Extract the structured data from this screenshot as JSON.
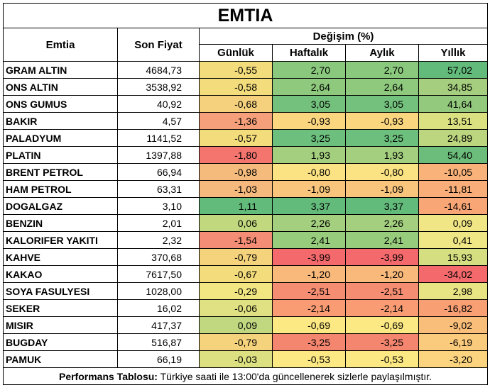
{
  "title": "EMTIA",
  "headers": {
    "commodity": "Emtia",
    "last_price": "Son Fiyat",
    "change_group": "Değişim (%)",
    "daily": "Günlük",
    "weekly": "Haftalık",
    "monthly": "Aylık",
    "yearly": "Yıllık"
  },
  "rows": [
    {
      "name": "GRAM ALTIN",
      "price": "4684,73",
      "daily": "-0,55",
      "weekly": "2,70",
      "monthly": "2,70",
      "yearly": "57,02"
    },
    {
      "name": "ONS ALTIN",
      "price": "3538,92",
      "daily": "-0,58",
      "weekly": "2,64",
      "monthly": "2,64",
      "yearly": "34,85"
    },
    {
      "name": "ONS GUMUS",
      "price": "40,92",
      "daily": "-0,68",
      "weekly": "3,05",
      "monthly": "3,05",
      "yearly": "41,64"
    },
    {
      "name": "BAKIR",
      "price": "4,57",
      "daily": "-1,36",
      "weekly": "-0,93",
      "monthly": "-0,93",
      "yearly": "13,51"
    },
    {
      "name": "PALADYUM",
      "price": "1141,52",
      "daily": "-0,57",
      "weekly": "3,25",
      "monthly": "3,25",
      "yearly": "24,89"
    },
    {
      "name": "PLATIN",
      "price": "1397,88",
      "daily": "-1,80",
      "weekly": "1,93",
      "monthly": "1,93",
      "yearly": "54,40"
    },
    {
      "name": "BRENT PETROL",
      "price": "66,94",
      "daily": "-0,98",
      "weekly": "-0,80",
      "monthly": "-0,80",
      "yearly": "-10,05"
    },
    {
      "name": "HAM PETROL",
      "price": "63,31",
      "daily": "-1,03",
      "weekly": "-1,09",
      "monthly": "-1,09",
      "yearly": "-11,81"
    },
    {
      "name": "DOGALGAZ",
      "price": "3,10",
      "daily": "1,11",
      "weekly": "3,37",
      "monthly": "3,37",
      "yearly": "-14,61"
    },
    {
      "name": "BENZIN",
      "price": "2,01",
      "daily": "0,06",
      "weekly": "2,26",
      "monthly": "2,26",
      "yearly": "0,09"
    },
    {
      "name": "KALORIFER YAKITI",
      "price": "2,32",
      "daily": "-1,54",
      "weekly": "2,41",
      "monthly": "2,41",
      "yearly": "0,41"
    },
    {
      "name": "KAHVE",
      "price": "370,68",
      "daily": "-0,79",
      "weekly": "-3,99",
      "monthly": "-3,99",
      "yearly": "15,93"
    },
    {
      "name": "KAKAO",
      "price": "7617,50",
      "daily": "-0,67",
      "weekly": "-1,20",
      "monthly": "-1,20",
      "yearly": "-34,02"
    },
    {
      "name": "SOYA FASULYESI",
      "price": "1028,00",
      "daily": "-0,29",
      "weekly": "-2,51",
      "monthly": "-2,51",
      "yearly": "2,98"
    },
    {
      "name": "SEKER",
      "price": "16,02",
      "daily": "-0,06",
      "weekly": "-2,14",
      "monthly": "-2,14",
      "yearly": "-16,82"
    },
    {
      "name": "MISIR",
      "price": "417,37",
      "daily": "0,09",
      "weekly": "-0,69",
      "monthly": "-0,69",
      "yearly": "-9,02"
    },
    {
      "name": "BUGDAY",
      "price": "516,87",
      "daily": "-0,79",
      "weekly": "-3,25",
      "monthly": "-3,25",
      "yearly": "-6,19"
    },
    {
      "name": "PAMUK",
      "price": "66,19",
      "daily": "-0,03",
      "weekly": "-0,53",
      "monthly": "-0,53",
      "yearly": "-3,20"
    }
  ],
  "colors": {
    "daily": [
      "#f3dc7c",
      "#f3dc7c",
      "#f5d17d",
      "#f5a07a",
      "#f3dc7c",
      "#f4746e",
      "#f5bb7d",
      "#f5b87d",
      "#63bb7b",
      "#c2d87f",
      "#f48d75",
      "#f5d37d",
      "#f3dc7c",
      "#f1e682",
      "#dfe182",
      "#c1d880",
      "#f5d37d",
      "#dce081"
    ],
    "weekly": [
      "#8ac87d",
      "#8ec97d",
      "#73c17c",
      "#fad67f",
      "#6cbf7c",
      "#a4cf7e",
      "#fbe283",
      "#f9c57c",
      "#63bb7b",
      "#a3cf7e",
      "#97cc7d",
      "#f4696b",
      "#f8b97a",
      "#f58d72",
      "#f99c74",
      "#fde983",
      "#f4856f",
      "#fde983"
    ],
    "monthly": [
      "#8ac87d",
      "#8ec97d",
      "#73c17c",
      "#fad67f",
      "#6cbf7c",
      "#a4cf7e",
      "#fbe283",
      "#f9c57c",
      "#63bb7b",
      "#a3cf7e",
      "#97cc7d",
      "#f4696b",
      "#f8b97a",
      "#f58d72",
      "#f99c74",
      "#fde983",
      "#f4856f",
      "#fde983"
    ],
    "yearly": [
      "#63bb7b",
      "#a5cf7e",
      "#92c97d",
      "#dbe181",
      "#bcd680",
      "#6cbd7b",
      "#f9b279",
      "#f9ad78",
      "#f8a676",
      "#f0e685",
      "#efe685",
      "#d5df81",
      "#f4696b",
      "#e9e483",
      "#f89f74",
      "#fabe7b",
      "#fbcb7d",
      "#fcd47f"
    ]
  },
  "footer": {
    "label": "Performans Tablosu:",
    "text": " Türkiye saati ile 13:00'da güncellenerek sizlerle paylaşılmıştır."
  }
}
